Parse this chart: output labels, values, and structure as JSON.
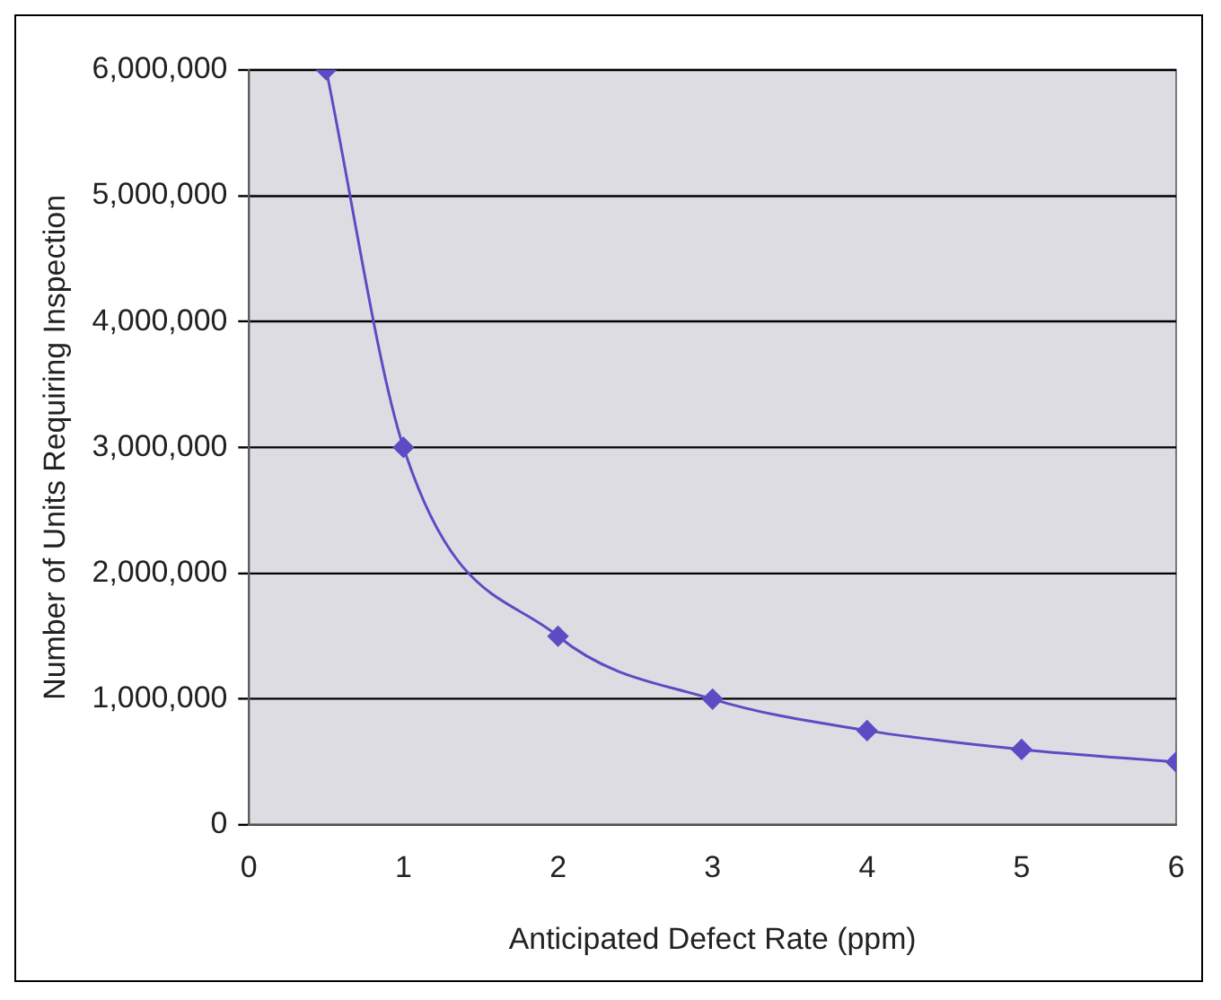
{
  "chart_data": {
    "type": "line",
    "xlabel": "Anticipated Defect Rate (ppm)",
    "ylabel": "Number of Units Requiring Inspection",
    "x": [
      0.5,
      1,
      2,
      3,
      4,
      5,
      6
    ],
    "series": [
      {
        "color": "#5b4cc4",
        "values": [
          6000000,
          3000000,
          1500000,
          1000000,
          750000,
          600000,
          500000
        ]
      }
    ],
    "xlim": [
      0,
      6
    ],
    "xticks": [
      0,
      1,
      2,
      3,
      4,
      5,
      6
    ],
    "ylim": [
      0,
      6000000
    ],
    "yticks": [
      {
        "value": 0,
        "label": "0"
      },
      {
        "value": 1000000,
        "label": "1,000,000"
      },
      {
        "value": 2000000,
        "label": "2,000,000"
      },
      {
        "value": 3000000,
        "label": "3,000,000"
      },
      {
        "value": 4000000,
        "label": "4,000,000"
      },
      {
        "value": 5000000,
        "label": "5,000,000"
      },
      {
        "value": 6000000,
        "label": "6,000,000"
      }
    ],
    "grid": "y",
    "legend": false,
    "marker": "diamond",
    "line_style": "solid"
  }
}
